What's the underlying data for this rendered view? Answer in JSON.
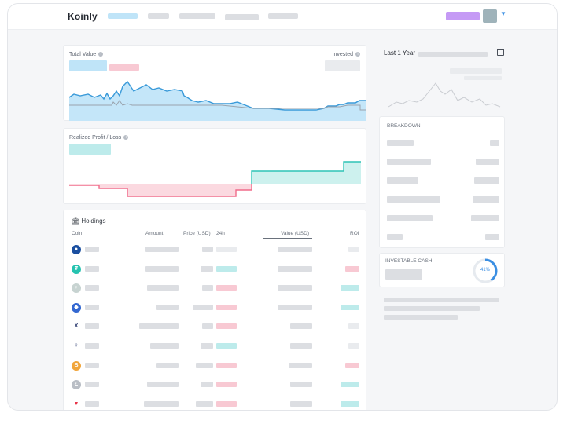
{
  "app": {
    "logo": "Koinly"
  },
  "colors": {
    "accent": "#3b8fe3",
    "positive": "#2ec4b6",
    "negative": "#f06c8a",
    "value_fill": "#c4e6f9"
  },
  "icons": {
    "calendar": "calendar-icon",
    "holdings": "bank-icon",
    "info": "info-icon",
    "caret": "chevron-down-icon"
  },
  "total_value": {
    "label": "Total Value",
    "invested_label": "Invested"
  },
  "realized": {
    "label": "Realized Profit / Loss"
  },
  "holdings": {
    "title": "Holdings",
    "columns": {
      "coin": "Coin",
      "amount": "Amount",
      "price": "Price (USD)",
      "change": "24h",
      "value": "Value (USD)",
      "roi": "ROI"
    },
    "rows": [
      {
        "icon": "bitcoin-dark-icon",
        "change": "neutral",
        "roi": "neutral"
      },
      {
        "icon": "tether-icon",
        "change": "up",
        "roi": "down"
      },
      {
        "icon": "balloon-icon",
        "change": "down",
        "roi": "up"
      },
      {
        "icon": "ethereum-icon",
        "change": "down",
        "roi": "up"
      },
      {
        "icon": "x-token-icon",
        "change": "down",
        "roi": "neutral"
      },
      {
        "icon": "dots-token-icon",
        "change": "up",
        "roi": "neutral"
      },
      {
        "icon": "bitcoin-icon",
        "change": "down",
        "roi": "down"
      },
      {
        "icon": "litecoin-icon",
        "change": "down",
        "roi": "up"
      },
      {
        "icon": "tron-icon",
        "change": "down",
        "roi": "up"
      }
    ]
  },
  "period": {
    "label": "Last 1 Year"
  },
  "breakdown": {
    "title": "BREAKDOWN"
  },
  "investable_cash": {
    "title": "INVESTABLE CASH",
    "percent": "41%",
    "fraction": 0.41
  }
}
